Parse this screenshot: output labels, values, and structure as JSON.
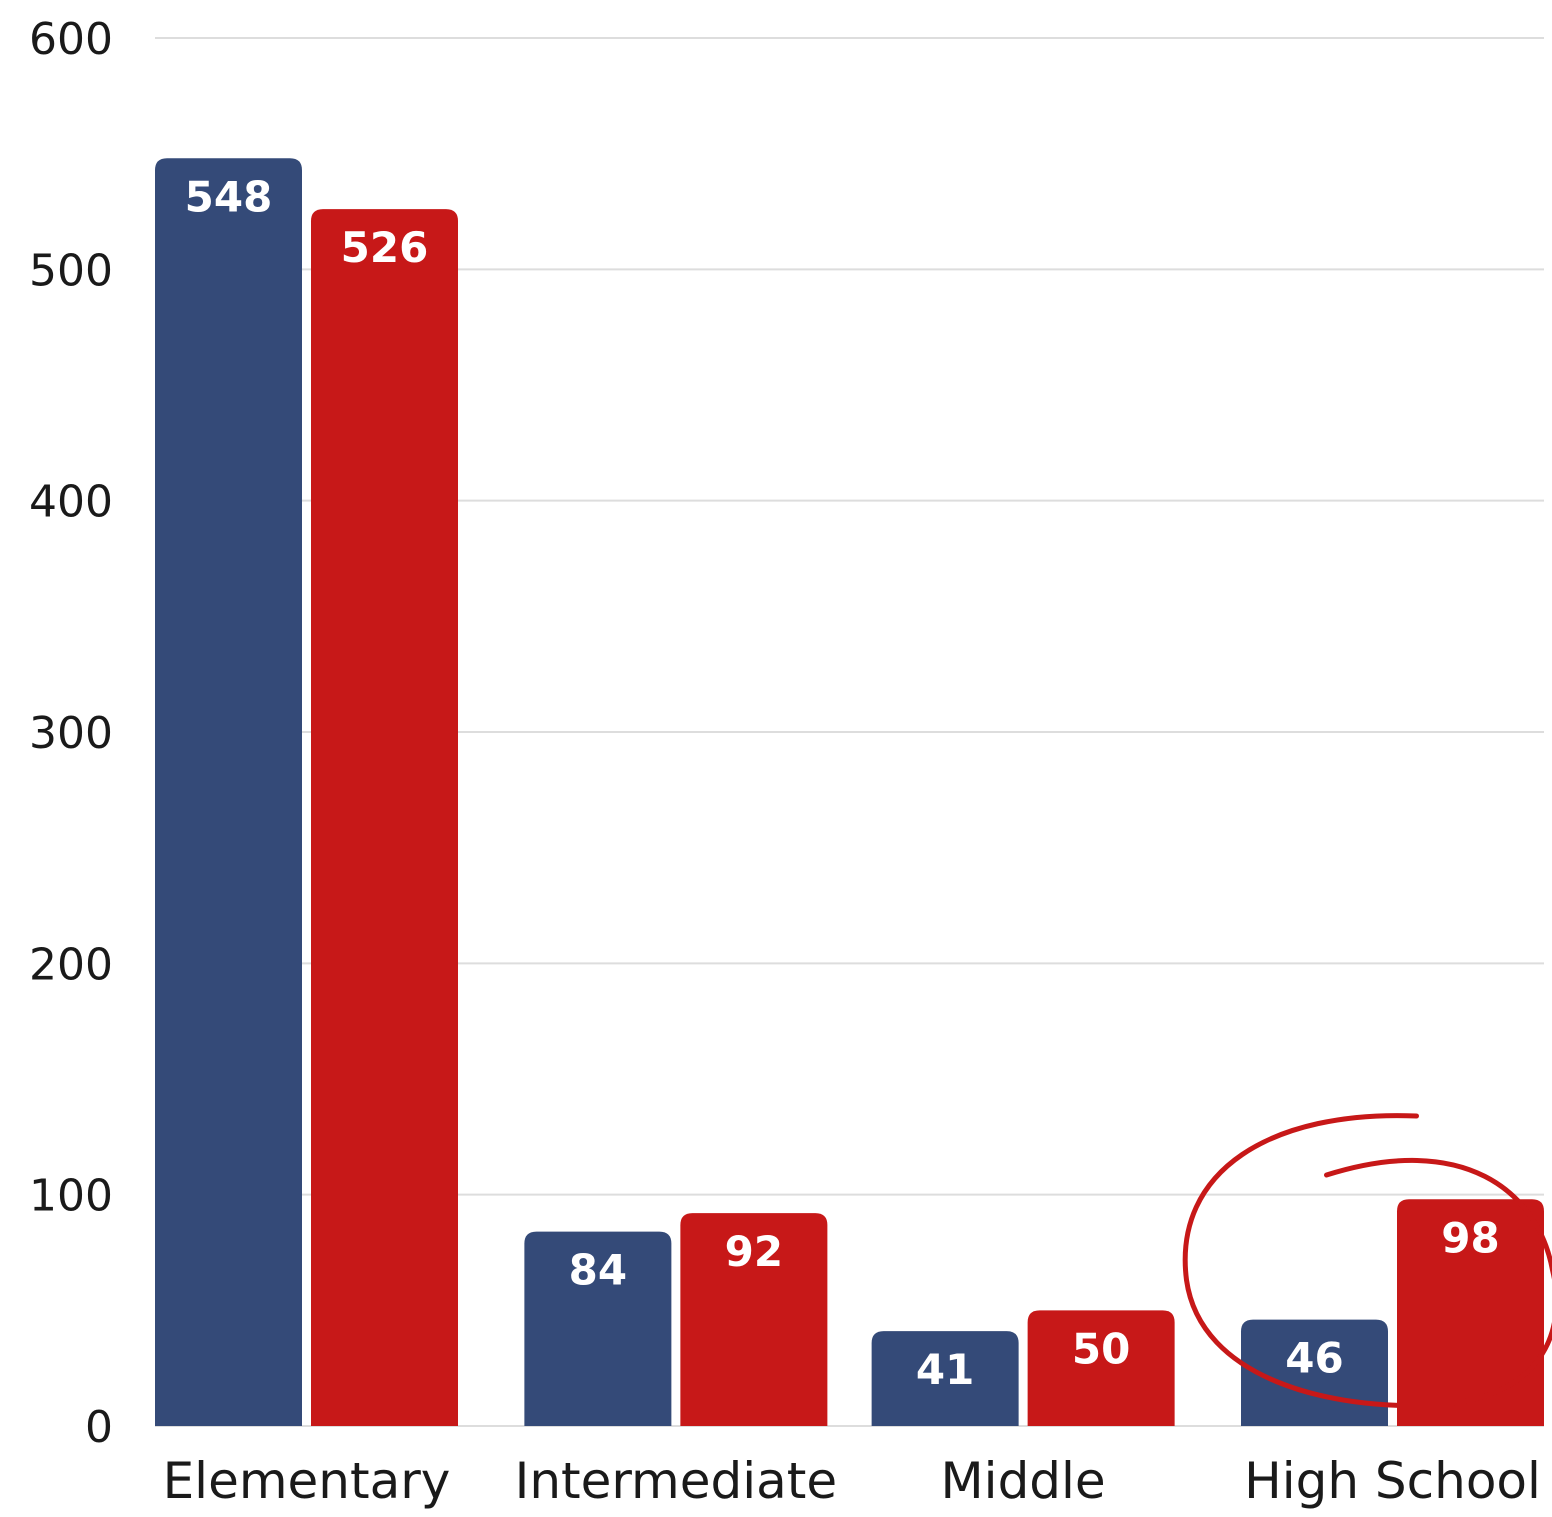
{
  "chart_data": {
    "type": "bar",
    "categories": [
      "Elementary",
      "Intermediate",
      "Middle",
      "High School"
    ],
    "series": [
      {
        "values": [
          548,
          84,
          41,
          46
        ],
        "color": "#344a78"
      },
      {
        "values": [
          526,
          92,
          50,
          98
        ],
        "color": "#c71818"
      }
    ],
    "ylim": [
      0,
      600
    ],
    "yticks": [
      0,
      100,
      200,
      300,
      400,
      500,
      600
    ],
    "ytick_labels": [
      "0",
      "100",
      "200",
      "300",
      "400",
      "500",
      "600"
    ],
    "grid": true,
    "gridline_color": "#dddddd",
    "annotation": {
      "shape": "hand-drawn circle",
      "target": "High School",
      "color": "#c71818"
    }
  }
}
